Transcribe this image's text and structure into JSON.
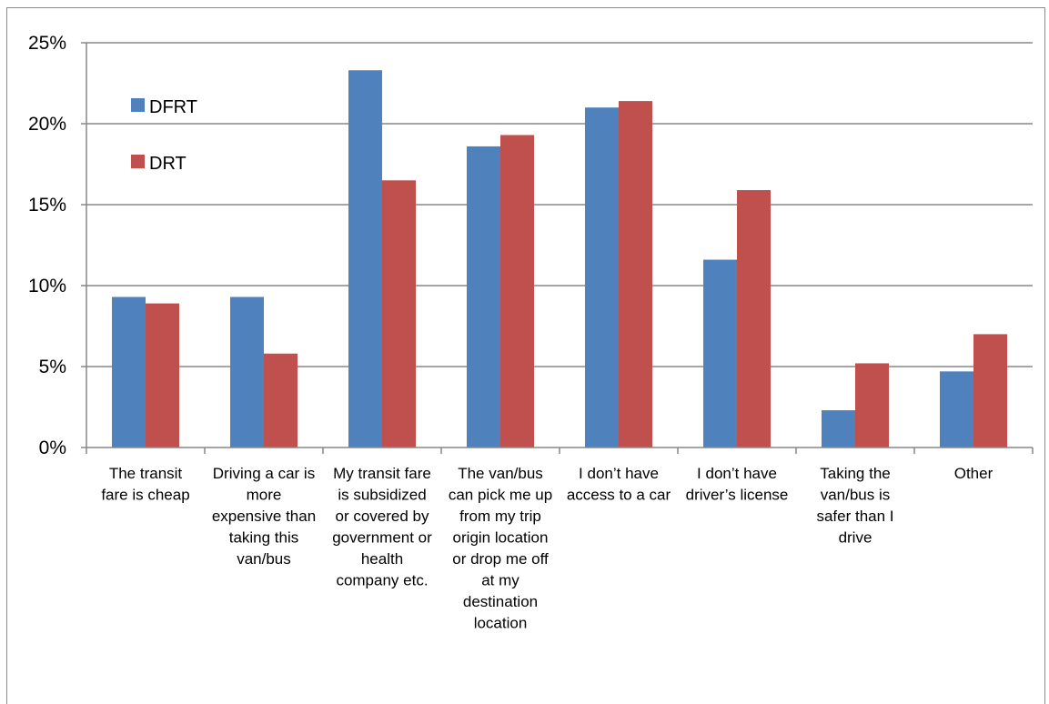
{
  "chart_data": {
    "type": "bar",
    "categories": [
      "The transit fare is cheap",
      "Driving a car is more expensive than taking this van/bus",
      "My transit fare is subsidized or covered by government or health company etc.",
      "The van/bus can pick me up from my trip origin location or drop me off at my destination location",
      "I don’t have access to a car",
      "I don’t have driver’s license",
      "Taking the van/bus is safer than I drive",
      "Other"
    ],
    "category_label_lines": [
      [
        "The transit",
        "fare is cheap"
      ],
      [
        "Driving a car is",
        "more",
        "expensive than",
        "taking this",
        "van/bus"
      ],
      [
        "My transit fare",
        "is subsidized",
        "or covered by",
        "government or",
        "health",
        "company etc."
      ],
      [
        "The van/bus",
        "can pick me up",
        "from my trip",
        "origin location",
        "or drop me off",
        "at my",
        "destination",
        "location"
      ],
      [
        "I don’t have",
        "access to a car"
      ],
      [
        "I don’t have",
        "driver’s license"
      ],
      [
        "Taking the",
        "van/bus is",
        "safer than I",
        "drive"
      ],
      [
        "Other"
      ]
    ],
    "series": [
      {
        "name": "DFRT",
        "color": "#4f81bd",
        "values": [
          9.3,
          9.3,
          23.3,
          18.6,
          21.0,
          11.6,
          2.3,
          4.7
        ]
      },
      {
        "name": "DRT",
        "color": "#c0504d",
        "values": [
          8.9,
          5.8,
          16.5,
          19.3,
          21.4,
          15.9,
          5.2,
          7.0
        ]
      }
    ],
    "yticks": [
      "0%",
      "5%",
      "10%",
      "15%",
      "20%",
      "25%"
    ],
    "ylim": [
      0,
      25
    ],
    "grid": true,
    "legend_position": "top-left",
    "title": "",
    "xlabel": "",
    "ylabel": ""
  }
}
